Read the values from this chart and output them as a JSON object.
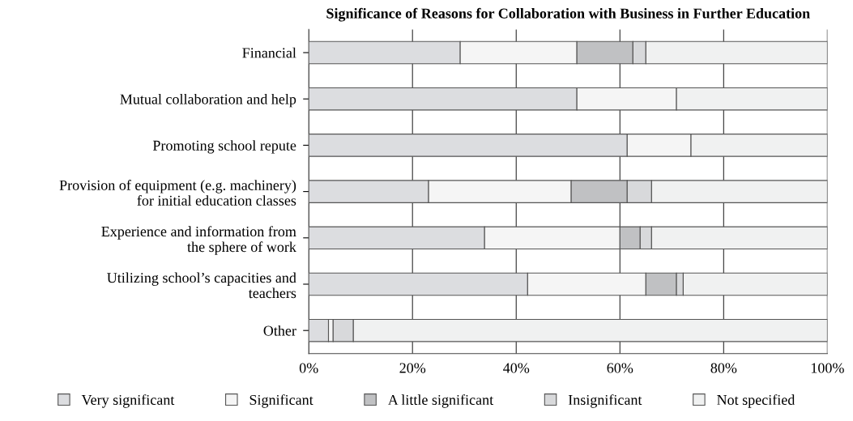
{
  "chart_data": {
    "type": "bar",
    "orientation": "horizontal",
    "stacked": true,
    "title": "Significance of Reasons for Collaboration with Business in Further Education",
    "categories": [
      "Financial",
      "Mutual collaboration and help",
      "Promoting school repute",
      "Provision of equipment (e.g. machinery)\nfor initial education classes",
      "Experience and information from\nthe sphere of work",
      "Utilizing school’s capacities and\nteachers",
      "Other"
    ],
    "series": [
      {
        "name": "Very significant",
        "color": "#dcdde0",
        "values": [
          29.2,
          51.7,
          61.4,
          23.1,
          33.9,
          42.2,
          3.8
        ]
      },
      {
        "name": "Significant",
        "color": "#f5f5f5",
        "values": [
          22.5,
          19.2,
          12.3,
          27.5,
          26.1,
          22.8,
          0.9
        ]
      },
      {
        "name": "A little significant",
        "color": "#c0c1c3",
        "values": [
          10.8,
          null,
          null,
          10.8,
          3.9,
          5.9,
          null
        ]
      },
      {
        "name": "Insignificant",
        "color": "#d8d9db",
        "values": [
          2.5,
          null,
          null,
          4.7,
          2.2,
          1.3,
          3.9
        ]
      },
      {
        "name": "Not specified",
        "color": "#f0f1f1",
        "values": [
          35.0,
          29.1,
          26.3,
          33.9,
          33.9,
          27.8,
          91.4
        ]
      }
    ],
    "xlim": [
      0,
      100
    ],
    "xticks": [
      {
        "value": 0,
        "label": "0%"
      },
      {
        "value": 20,
        "label": "20%"
      },
      {
        "value": 40,
        "label": "40%"
      },
      {
        "value": 60,
        "label": "60%"
      },
      {
        "value": 80,
        "label": "80%"
      },
      {
        "value": 100,
        "label": "100%"
      }
    ],
    "grid": "x",
    "legend": "bottom"
  }
}
